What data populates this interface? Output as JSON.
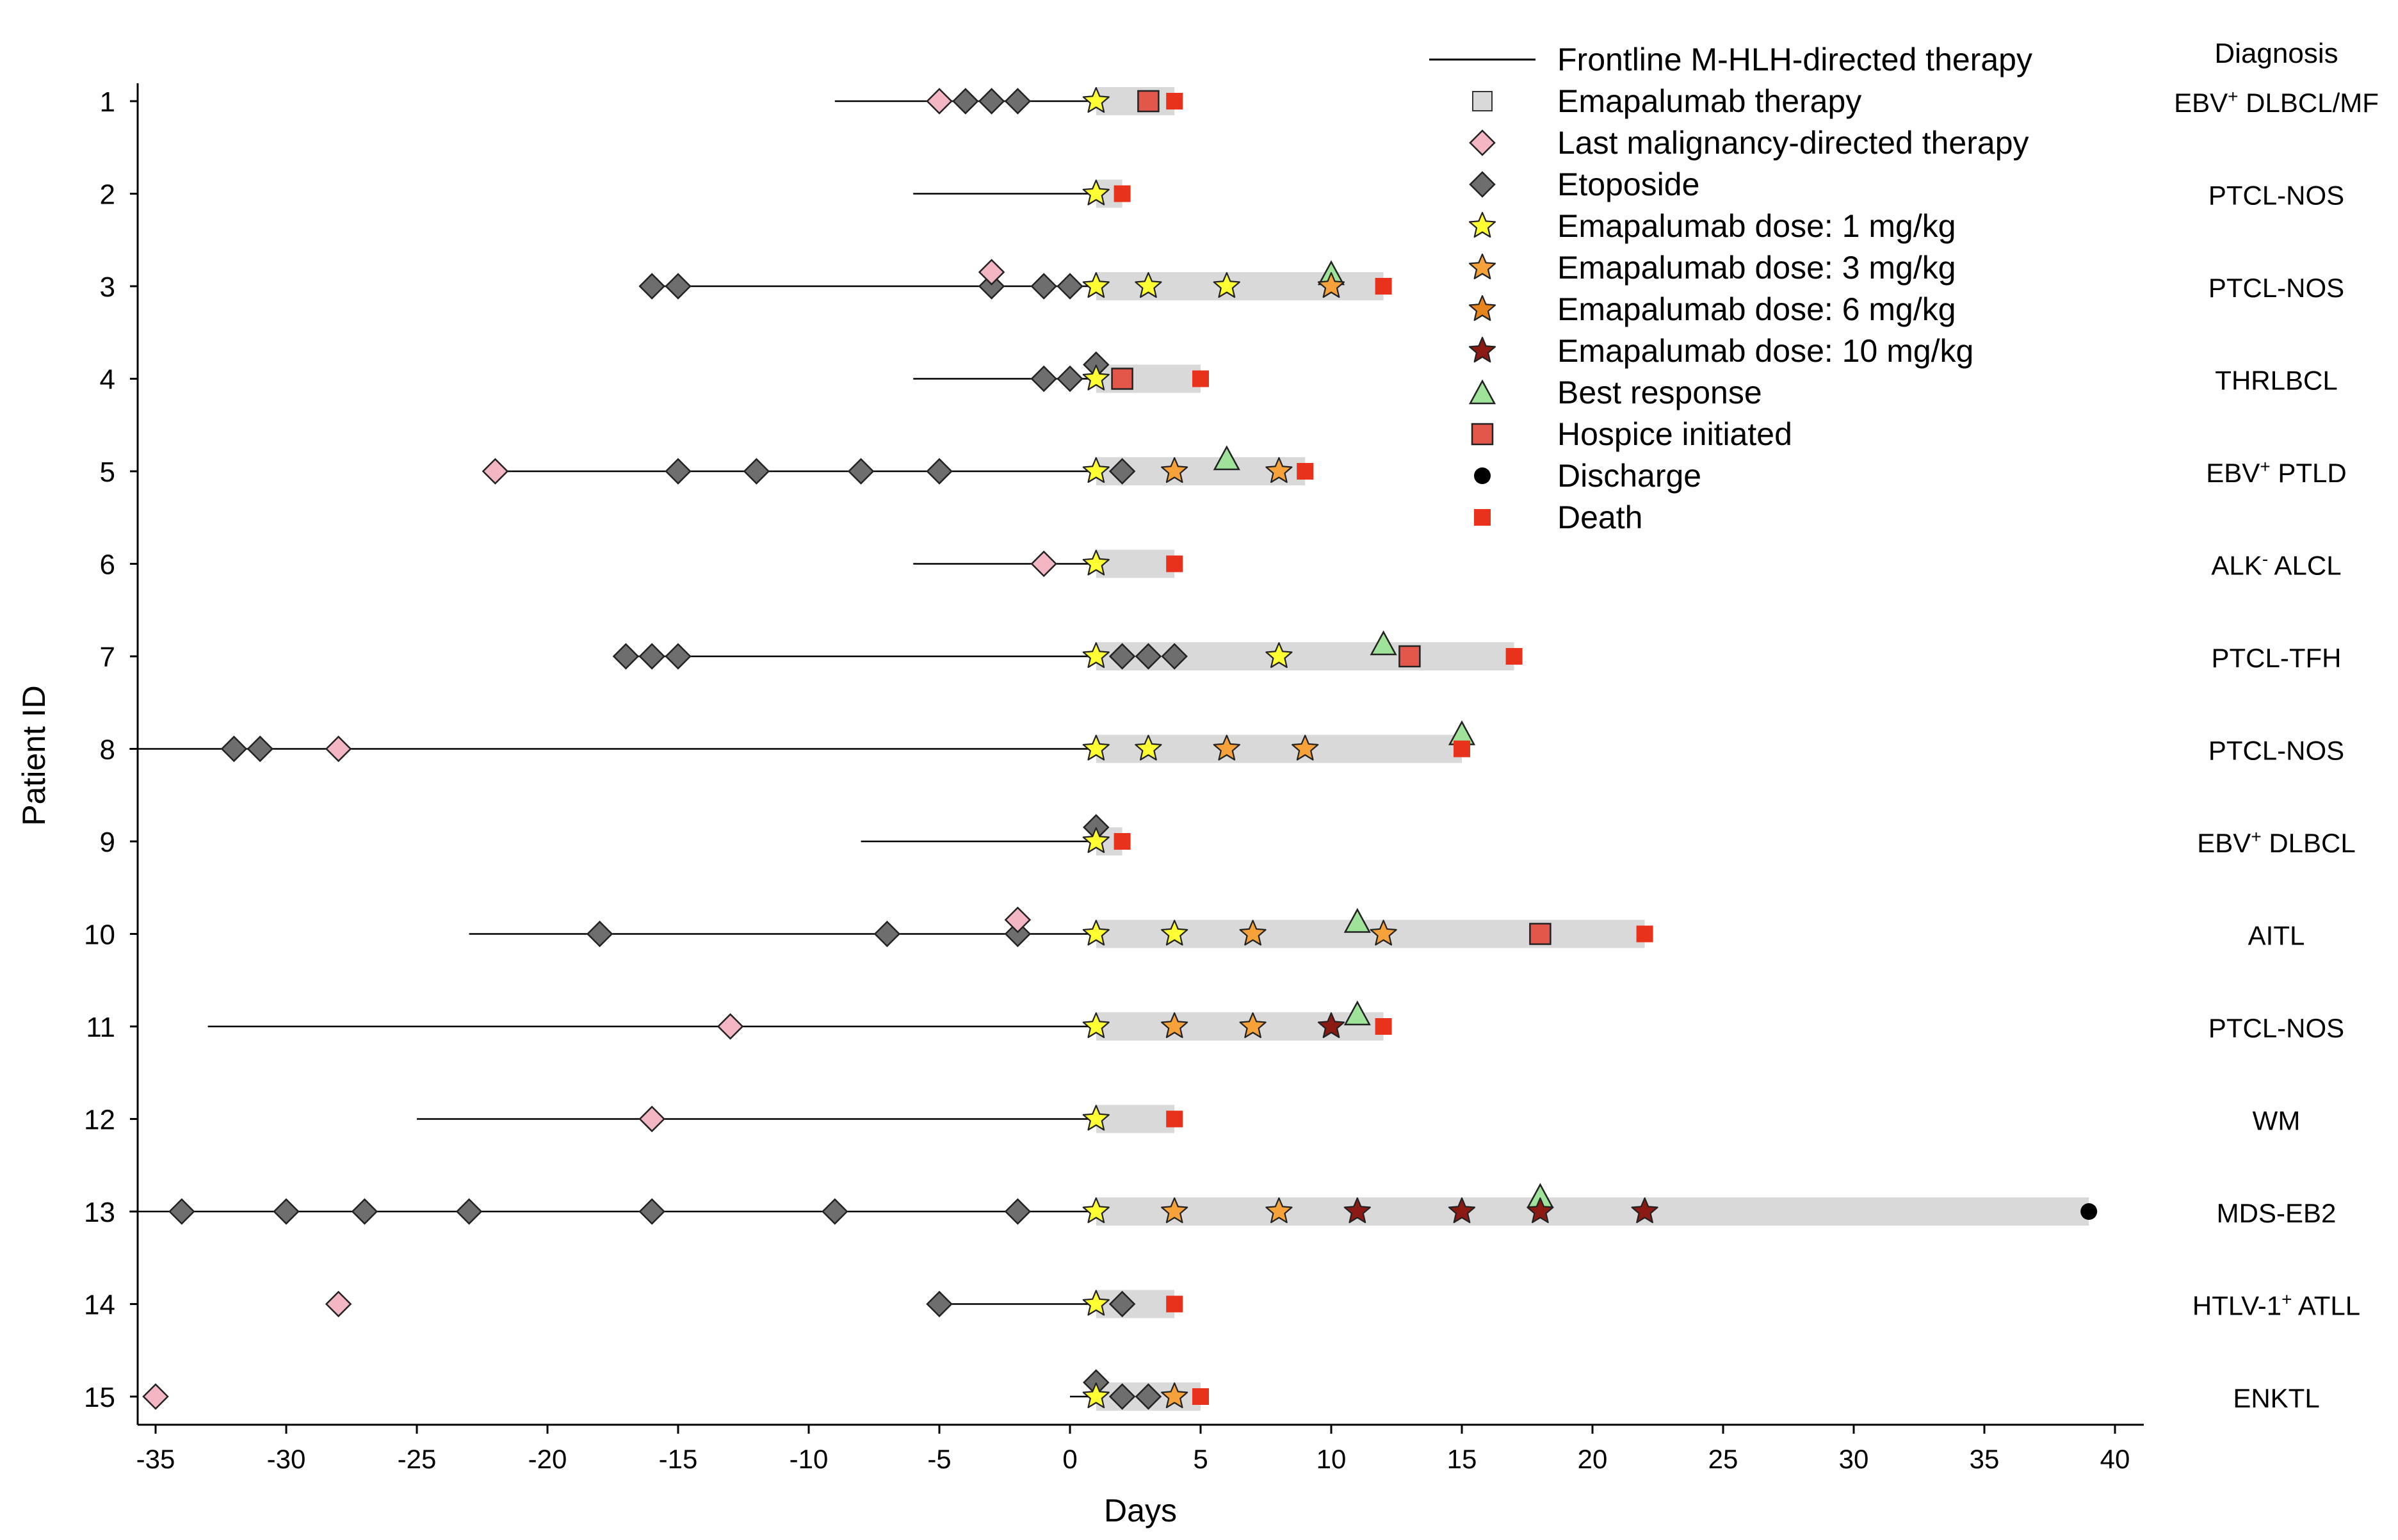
{
  "chart_data": {
    "type": "scatter",
    "xlabel": "Days",
    "ylabel": "Patient ID",
    "xlim": [
      -36,
      41
    ],
    "x_ticks": [
      -35,
      -30,
      -25,
      -20,
      -15,
      -10,
      -5,
      0,
      5,
      10,
      15,
      20,
      25,
      30,
      35,
      40
    ],
    "x_tick_labels": [
      "-35",
      "-30",
      "-25",
      "-20",
      "-15",
      "-10",
      "-5",
      "0",
      "5",
      "10",
      "15",
      "20",
      "25",
      "30",
      "35",
      "40"
    ],
    "diagnosis_header": "Diagnosis",
    "legend": {
      "position": "top-right",
      "entries": [
        {
          "key": "line",
          "label": "Frontline M-HLH-directed therapy"
        },
        {
          "key": "ema_bar",
          "label": "Emapalumab therapy"
        },
        {
          "key": "last_malig",
          "label": "Last malignancy-directed therapy"
        },
        {
          "key": "etoposide",
          "label": "Etoposide"
        },
        {
          "key": "dose1",
          "label": "Emapalumab dose: 1 mg/kg"
        },
        {
          "key": "dose3",
          "label": "Emapalumab dose: 3 mg/kg"
        },
        {
          "key": "dose6",
          "label": "Emapalumab dose: 6 mg/kg"
        },
        {
          "key": "dose10",
          "label": "Emapalumab dose: 10 mg/kg"
        },
        {
          "key": "best_response",
          "label": "Best response"
        },
        {
          "key": "hospice",
          "label": "Hospice initiated"
        },
        {
          "key": "discharge",
          "label": "Discharge"
        },
        {
          "key": "death",
          "label": "Death"
        }
      ]
    },
    "colors": {
      "line": "#000000",
      "ema_bar": "#d9d9d9",
      "last_malig": "#f4b6c2",
      "etoposide": "#6e6e6e",
      "dose1": "#ffff33",
      "dose3": "#f7a13b",
      "dose6": "#e8841e",
      "dose10": "#8b1a12",
      "best_response": "#9fe39a",
      "hospice": "#e2574a",
      "discharge": "#000000",
      "death": "#e8321c"
    },
    "patients": [
      {
        "id": "1",
        "diagnosis": "EBV",
        "diag_sup": "+",
        "diag_rest": " DLBCL/MF",
        "line": [
          -9,
          1
        ],
        "ema_bar": [
          1,
          4
        ],
        "last_malig": [
          -5
        ],
        "etoposide": [
          -4,
          -3,
          -2
        ],
        "dose1": [
          1
        ],
        "dose3": [],
        "dose6": [],
        "dose10": [],
        "best_response": [],
        "hospice": [
          3
        ],
        "discharge": [],
        "death": [
          4
        ]
      },
      {
        "id": "2",
        "diagnosis": "PTCL-NOS",
        "diag_sup": "",
        "diag_rest": "",
        "line": [
          -6,
          1
        ],
        "ema_bar": [
          1,
          2
        ],
        "last_malig": [],
        "etoposide": [],
        "dose1": [
          1
        ],
        "dose3": [],
        "dose6": [],
        "dose10": [],
        "best_response": [],
        "hospice": [],
        "discharge": [],
        "death": [
          2
        ]
      },
      {
        "id": "3",
        "diagnosis": "PTCL-NOS",
        "diag_sup": "",
        "diag_rest": "",
        "line": [
          -16,
          1
        ],
        "ema_bar": [
          1,
          12
        ],
        "last_malig": [
          -3
        ],
        "last_malig_raised": true,
        "etoposide": [
          -16,
          -15,
          -3,
          -1,
          0
        ],
        "dose1": [
          1,
          3,
          6
        ],
        "dose3": [
          10
        ],
        "dose6": [],
        "dose10": [],
        "best_response": [
          10
        ],
        "hospice": [],
        "discharge": [],
        "death": [
          12
        ]
      },
      {
        "id": "4",
        "diagnosis": "THRLBCL",
        "diag_sup": "",
        "diag_rest": "",
        "line": [
          -6,
          1
        ],
        "ema_bar": [
          1,
          5
        ],
        "last_malig": [],
        "etoposide": [
          -1,
          0
        ],
        "etoposide_raised": [
          1
        ],
        "dose1": [
          1
        ],
        "dose3": [],
        "dose6": [],
        "dose10": [],
        "best_response": [],
        "hospice": [
          2
        ],
        "discharge": [],
        "death": [
          5
        ]
      },
      {
        "id": "5",
        "diagnosis": "EBV",
        "diag_sup": "+",
        "diag_rest": " PTLD",
        "line": [
          -22,
          1
        ],
        "ema_bar": [
          1,
          9
        ],
        "last_malig": [
          -22
        ],
        "etoposide": [
          -15,
          -12,
          -8,
          -5,
          2
        ],
        "dose1": [
          1
        ],
        "dose3": [
          4,
          8
        ],
        "dose6": [],
        "dose10": [],
        "best_response": [
          6
        ],
        "hospice": [],
        "discharge": [],
        "death": [
          9
        ]
      },
      {
        "id": "6",
        "diagnosis": "ALK",
        "diag_sup": "-",
        "diag_rest": " ALCL",
        "line": [
          -6,
          1
        ],
        "ema_bar": [
          1,
          4
        ],
        "last_malig": [
          -1
        ],
        "etoposide": [],
        "dose1": [
          1
        ],
        "dose3": [],
        "dose6": [],
        "dose10": [],
        "best_response": [],
        "hospice": [],
        "discharge": [],
        "death": [
          4
        ]
      },
      {
        "id": "7",
        "diagnosis": "PTCL-TFH",
        "diag_sup": "",
        "diag_rest": "",
        "line": [
          -17,
          1
        ],
        "ema_bar": [
          1,
          17
        ],
        "last_malig": [],
        "etoposide": [
          -17,
          -16,
          -15,
          2,
          3,
          4
        ],
        "dose1": [
          1,
          8
        ],
        "dose3": [],
        "dose6": [],
        "dose10": [],
        "best_response": [
          12
        ],
        "hospice": [
          13
        ],
        "discharge": [],
        "death": [
          17
        ]
      },
      {
        "id": "8",
        "diagnosis": "PTCL-NOS",
        "diag_sup": "",
        "diag_rest": "",
        "line": [
          -36,
          1
        ],
        "ema_bar": [
          1,
          15
        ],
        "last_malig": [
          -28
        ],
        "etoposide": [
          -32,
          -31
        ],
        "dose1": [
          1,
          3
        ],
        "dose3": [
          6,
          9
        ],
        "dose6": [],
        "dose10": [],
        "best_response": [
          15
        ],
        "best_response_raised": true,
        "hospice": [],
        "discharge": [],
        "death": [
          15
        ]
      },
      {
        "id": "9",
        "diagnosis": "EBV",
        "diag_sup": "+",
        "diag_rest": " DLBCL",
        "line": [
          -8,
          1
        ],
        "ema_bar": [
          1,
          2
        ],
        "last_malig": [],
        "etoposide": [],
        "etoposide_raised": [
          1
        ],
        "dose1": [
          1
        ],
        "dose3": [],
        "dose6": [],
        "dose10": [],
        "best_response": [],
        "hospice": [],
        "discharge": [],
        "death": [
          2
        ]
      },
      {
        "id": "10",
        "diagnosis": "AITL",
        "diag_sup": "",
        "diag_rest": "",
        "line": [
          -23,
          1
        ],
        "ema_bar": [
          1,
          22
        ],
        "last_malig": [
          -2
        ],
        "last_malig_raised": true,
        "etoposide": [
          -18,
          -7,
          -2
        ],
        "dose1": [
          1,
          4
        ],
        "dose3": [
          7,
          12
        ],
        "dose6": [],
        "dose10": [],
        "best_response": [
          11
        ],
        "hospice": [
          18
        ],
        "discharge": [],
        "death": [
          22
        ]
      },
      {
        "id": "11",
        "diagnosis": "PTCL-NOS",
        "diag_sup": "",
        "diag_rest": "",
        "line": [
          -33,
          1
        ],
        "ema_bar": [
          1,
          12
        ],
        "last_malig": [
          -13
        ],
        "etoposide": [],
        "dose1": [
          1
        ],
        "dose3": [
          4,
          7
        ],
        "dose6": [],
        "dose10": [
          10
        ],
        "best_response": [
          11
        ],
        "hospice": [],
        "discharge": [],
        "death": [
          12
        ]
      },
      {
        "id": "12",
        "diagnosis": "WM",
        "diag_sup": "",
        "diag_rest": "",
        "line": [
          -25,
          1
        ],
        "ema_bar": [
          1,
          4
        ],
        "last_malig": [
          -16
        ],
        "etoposide": [],
        "dose1": [
          1
        ],
        "dose3": [],
        "dose6": [],
        "dose10": [],
        "best_response": [],
        "hospice": [],
        "discharge": [],
        "death": [
          4
        ]
      },
      {
        "id": "13",
        "diagnosis": "MDS-EB2",
        "diag_sup": "",
        "diag_rest": "",
        "line": [
          -36,
          1
        ],
        "ema_bar": [
          1,
          39
        ],
        "last_malig": [],
        "etoposide": [
          -34,
          -30,
          -27,
          -23,
          -16,
          -9,
          -2
        ],
        "dose1": [
          1
        ],
        "dose3": [
          4,
          8
        ],
        "dose6": [],
        "dose10": [
          11,
          15,
          18,
          22
        ],
        "best_response": [
          18
        ],
        "best_response_raised": true,
        "hospice": [],
        "discharge": [
          39
        ],
        "death": []
      },
      {
        "id": "14",
        "diagnosis": "HTLV-1",
        "diag_sup": "+",
        "diag_rest": " ATLL",
        "line": [
          -5,
          1
        ],
        "ema_bar": [
          1,
          4
        ],
        "last_malig": [
          -28
        ],
        "etoposide": [
          -5,
          2
        ],
        "dose1": [
          1
        ],
        "dose3": [],
        "dose6": [],
        "dose10": [],
        "best_response": [],
        "hospice": [],
        "discharge": [],
        "death": [
          4
        ]
      },
      {
        "id": "15",
        "diagnosis": "ENKTL",
        "diag_sup": "",
        "diag_rest": "",
        "line": [
          0,
          1
        ],
        "ema_bar": [
          1,
          5
        ],
        "last_malig": [
          -35
        ],
        "etoposide": [
          2,
          3
        ],
        "etoposide_raised": [
          1
        ],
        "dose1": [
          1
        ],
        "dose3": [
          4
        ],
        "dose6": [],
        "dose10": [],
        "best_response": [],
        "hospice": [],
        "discharge": [],
        "death": [
          5
        ]
      }
    ]
  }
}
